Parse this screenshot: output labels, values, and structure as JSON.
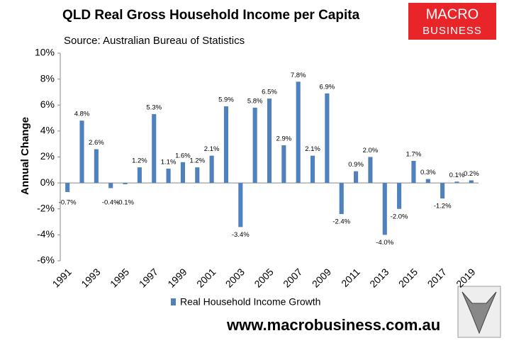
{
  "chart_data": {
    "type": "bar",
    "title": "QLD Real Gross Household Income per Capita",
    "subtitle": "Source: Australian Bureau of Statistics",
    "logo": [
      "MACRO",
      "BUSINESS"
    ],
    "website": "www.macrobusiness.com.au",
    "y_label": "Annual Change",
    "categories": [
      "1991",
      null,
      "1993",
      null,
      "1995",
      null,
      "1997",
      null,
      "1999",
      null,
      "2001",
      null,
      "2003",
      null,
      "2005",
      null,
      "2007",
      null,
      "2009",
      null,
      "2011",
      null,
      "2013",
      null,
      "2015",
      null,
      "2017",
      null,
      "2019"
    ],
    "series": [
      {
        "name": "Real Household Income Growth",
        "color": "#4f81bd",
        "values": [
          -0.7,
          4.8,
          2.6,
          -0.4,
          -0.1,
          1.2,
          5.3,
          1.1,
          1.6,
          1.2,
          2.1,
          5.9,
          -3.4,
          5.8,
          6.5,
          2.9,
          7.8,
          2.1,
          6.9,
          -2.4,
          0.9,
          2.0,
          -4.0,
          -2.0,
          1.7,
          0.3,
          -1.2,
          0.1,
          0.2
        ],
        "value_labels": [
          "-0.7%",
          "4.8%",
          "2.6%",
          "-0.4%",
          "-0.1%",
          "1.2%",
          "5.3%",
          "1.1%",
          "1.6%",
          "1.2%",
          "2.1%",
          "5.9%",
          "-3.4%",
          "5.8%",
          "6.5%",
          "2.9%",
          "7.8%",
          "2.1%",
          "6.9%",
          "-2.4%",
          "0.9%",
          "2.0%",
          "-4.0%",
          "-2.0%",
          "1.7%",
          "0.3%",
          "-1.2%",
          "0.1%",
          "0.2%"
        ]
      }
    ],
    "ylim": [
      -6,
      10
    ],
    "yticks": [
      {
        "value": -6,
        "label": "-6%"
      },
      {
        "value": -4,
        "label": "-4%"
      },
      {
        "value": -2,
        "label": "-2%"
      },
      {
        "value": 0,
        "label": "0%"
      },
      {
        "value": 2,
        "label": "2%"
      },
      {
        "value": 4,
        "label": "4%"
      },
      {
        "value": 6,
        "label": "6%"
      },
      {
        "value": 8,
        "label": "8%"
      },
      {
        "value": 10,
        "label": "10%"
      }
    ],
    "grid": false
  }
}
